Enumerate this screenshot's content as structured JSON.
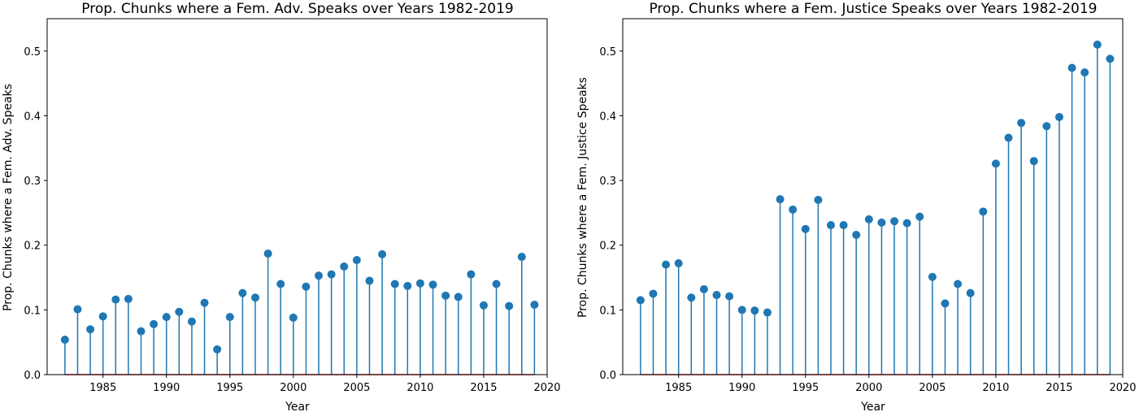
{
  "chart_data": [
    {
      "type": "stem",
      "title": "Prop. Chunks where a Fem. Adv. Speaks over Years 1982-2019",
      "xlabel": "Year",
      "ylabel": "Prop. Chunks where a Fem. Adv. Speaks",
      "xlim": [
        1980.6,
        2020
      ],
      "ylim": [
        0,
        0.55
      ],
      "xticks": [
        1985,
        1990,
        1995,
        2000,
        2005,
        2010,
        2015,
        2020
      ],
      "yticks": [
        0.0,
        0.1,
        0.2,
        0.3,
        0.4,
        0.5
      ],
      "xtick_labels": [
        "1985",
        "1990",
        "1995",
        "2000",
        "2005",
        "2010",
        "2015",
        "2020"
      ],
      "ytick_labels": [
        "0.0",
        "0.1",
        "0.2",
        "0.3",
        "0.4",
        "0.5"
      ],
      "color": "#1f77b4",
      "baseline_color": "#d62728",
      "x": [
        1982,
        1983,
        1984,
        1985,
        1986,
        1987,
        1988,
        1989,
        1990,
        1991,
        1992,
        1993,
        1994,
        1995,
        1996,
        1997,
        1998,
        1999,
        2000,
        2001,
        2002,
        2003,
        2004,
        2005,
        2006,
        2007,
        2008,
        2009,
        2010,
        2011,
        2012,
        2013,
        2014,
        2015,
        2016,
        2017,
        2018,
        2019
      ],
      "values": [
        0.054,
        0.101,
        0.07,
        0.09,
        0.116,
        0.117,
        0.067,
        0.078,
        0.089,
        0.097,
        0.082,
        0.111,
        0.039,
        0.089,
        0.126,
        0.119,
        0.187,
        0.14,
        0.088,
        0.136,
        0.153,
        0.155,
        0.167,
        0.177,
        0.145,
        0.186,
        0.14,
        0.137,
        0.141,
        0.139,
        0.122,
        0.12,
        0.155,
        0.107,
        0.14,
        0.106,
        0.182,
        0.108
      ]
    },
    {
      "type": "stem",
      "title": "Prop. Chunks where a Fem. Justice Speaks over Years 1982-2019",
      "xlabel": "Year",
      "ylabel": "Prop. Chunks where a Fem. Justice Speaks",
      "xlim": [
        1980.6,
        2020
      ],
      "ylim": [
        0,
        0.55
      ],
      "xticks": [
        1985,
        1990,
        1995,
        2000,
        2005,
        2010,
        2015,
        2020
      ],
      "yticks": [
        0.0,
        0.1,
        0.2,
        0.3,
        0.4,
        0.5
      ],
      "xtick_labels": [
        "1985",
        "1990",
        "1995",
        "2000",
        "2005",
        "2010",
        "2015",
        "2020"
      ],
      "ytick_labels": [
        "0.0",
        "0.1",
        "0.2",
        "0.3",
        "0.4",
        "0.5"
      ],
      "color": "#1f77b4",
      "baseline_color": "#d62728",
      "x": [
        1982,
        1983,
        1984,
        1985,
        1986,
        1987,
        1988,
        1989,
        1990,
        1991,
        1992,
        1993,
        1994,
        1995,
        1996,
        1997,
        1998,
        1999,
        2000,
        2001,
        2002,
        2003,
        2004,
        2005,
        2006,
        2007,
        2008,
        2009,
        2010,
        2011,
        2012,
        2013,
        2014,
        2015,
        2016,
        2017,
        2018,
        2019
      ],
      "values": [
        0.115,
        0.125,
        0.17,
        0.172,
        0.119,
        0.132,
        0.123,
        0.121,
        0.1,
        0.099,
        0.096,
        0.271,
        0.255,
        0.225,
        0.27,
        0.231,
        0.231,
        0.216,
        0.24,
        0.235,
        0.237,
        0.234,
        0.244,
        0.151,
        0.11,
        0.14,
        0.126,
        0.252,
        0.326,
        0.366,
        0.389,
        0.33,
        0.384,
        0.398,
        0.474,
        0.467,
        0.51,
        0.488
      ]
    }
  ]
}
